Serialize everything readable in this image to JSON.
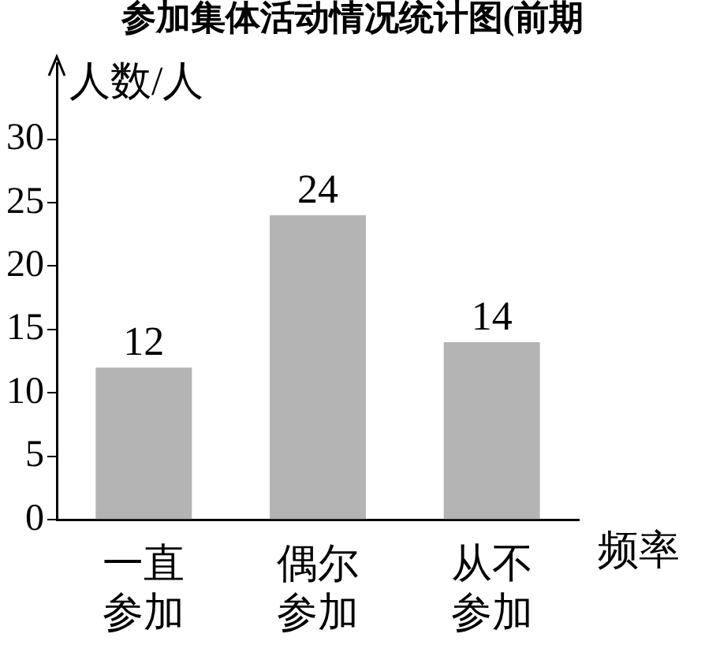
{
  "chart_data": {
    "type": "bar",
    "title": "参加集体活动情况统计图(前期",
    "xlabel": "频率",
    "ylabel": "人数/人",
    "categories": [
      "一直参加",
      "偶尔参加",
      "从不参加"
    ],
    "values": [
      12,
      24,
      14
    ],
    "color": "#b4b4b4",
    "ylim": [
      0,
      36
    ],
    "yticks": [
      0,
      5,
      10,
      15,
      20,
      25,
      30
    ],
    "grid": false,
    "data_labels": true,
    "legend": false
  }
}
